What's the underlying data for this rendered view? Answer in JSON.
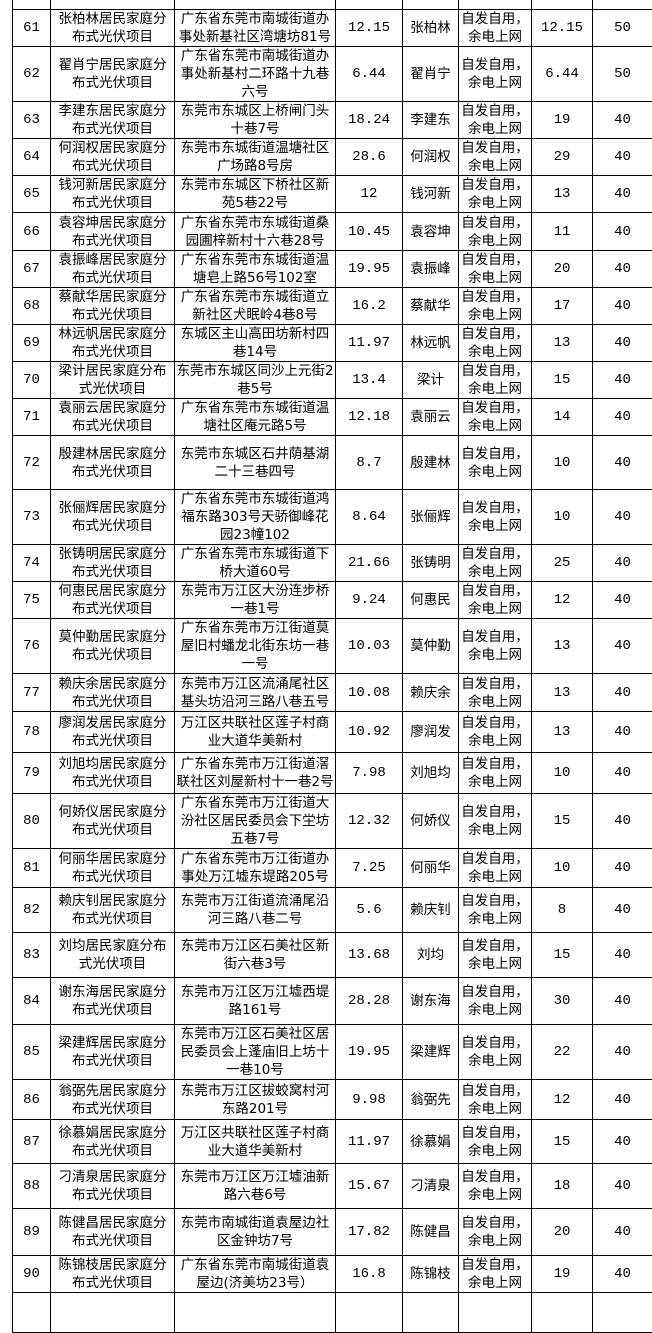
{
  "table": {
    "rows": [
      {
        "no": "61",
        "project": "张柏林居民家庭分布式光伏项目",
        "address": "广东省东莞市南城街道办事处新基社区湾塘坊81号",
        "capacity": "12.15",
        "owner": "张柏林",
        "mode": "自发自用，余电上网",
        "value1": "12.15",
        "value2": "50"
      },
      {
        "no": "62",
        "project": "翟肖宁居民家庭分布式光伏项目",
        "address": "广东省东莞市南城街道办事处新基村二环路十九巷六号",
        "capacity": "6.44",
        "owner": "翟肖宁",
        "mode": "自发自用，余电上网",
        "value1": "6.44",
        "value2": "50"
      },
      {
        "no": "63",
        "project": "李建东居民家庭分布式光伏项目",
        "address": "东莞市东城区上桥闸门头十巷7号",
        "capacity": "18.24",
        "owner": "李建东",
        "mode": "自发自用，余电上网",
        "value1": "19",
        "value2": "40"
      },
      {
        "no": "64",
        "project": "何润权居民家庭分布式光伏项目",
        "address": "东莞市东城街道温塘社区广场路8号房",
        "capacity": "28.6",
        "owner": "何润权",
        "mode": "自发自用，余电上网",
        "value1": "29",
        "value2": "40"
      },
      {
        "no": "65",
        "project": "钱河新居民家庭分布式光伏项目",
        "address": "东莞市东城区下桥社区新苑5巷22号",
        "capacity": "12",
        "owner": "钱河新",
        "mode": "自发自用，余电上网",
        "value1": "13",
        "value2": "40"
      },
      {
        "no": "66",
        "project": "袁容坤居民家庭分布式光伏项目",
        "address": "广东省东莞市东城街道桑园圃梓新村十六巷28号",
        "capacity": "10.45",
        "owner": "袁容坤",
        "mode": "自发自用，余电上网",
        "value1": "11",
        "value2": "40"
      },
      {
        "no": "67",
        "project": "袁振峰居民家庭分布式光伏项目",
        "address": "广东省东莞市东城街道温塘皂上路56号102室",
        "capacity": "19.95",
        "owner": "袁振峰",
        "mode": "自发自用，余电上网",
        "value1": "20",
        "value2": "40"
      },
      {
        "no": "68",
        "project": "蔡献华居民家庭分布式光伏项目",
        "address": "广东省东莞市东城街道立新社区犬眠岭4巷8号",
        "capacity": "16.2",
        "owner": "蔡献华",
        "mode": "自发自用，余电上网",
        "value1": "17",
        "value2": "40"
      },
      {
        "no": "69",
        "project": "林远帆居民家庭分布式光伏项目",
        "address": "东城区主山高田坊新村四巷14号",
        "capacity": "11.97",
        "owner": "林远帆",
        "mode": "自发自用，余电上网",
        "value1": "13",
        "value2": "40"
      },
      {
        "no": "70",
        "project": "梁计居民家庭分布式光伏项目",
        "address": "东莞市东城区同沙上元街2巷5号",
        "capacity": "13.4",
        "owner": "梁计",
        "mode": "自发自用，余电上网",
        "value1": "15",
        "value2": "40"
      },
      {
        "no": "71",
        "project": "袁丽云居民家庭分布式光伏项目",
        "address": "广东省东莞市东城街道温塘社区庵元路5号",
        "capacity": "12.18",
        "owner": "袁丽云",
        "mode": "自发自用，余电上网",
        "value1": "14",
        "value2": "40"
      },
      {
        "no": "72",
        "project": "殷建林居民家庭分布式光伏项目",
        "address": "东莞市东城区石井荫基湖二十三巷四号",
        "capacity": "8.7",
        "owner": "殷建林",
        "mode": "自发自用，余电上网",
        "value1": "10",
        "value2": "40"
      },
      {
        "no": "73",
        "project": "张俪辉居民家庭分布式光伏项目",
        "address": "广东省东莞市东城街道鸿福东路303号天骄御峰花园23幢102",
        "capacity": "8.64",
        "owner": "张俪辉",
        "mode": "自发自用，余电上网",
        "value1": "10",
        "value2": "40"
      },
      {
        "no": "74",
        "project": "张铸明居民家庭分布式光伏项目",
        "address": "广东省东莞市东城街道下桥大道60号",
        "capacity": "21.66",
        "owner": "张铸明",
        "mode": "自发自用，余电上网",
        "value1": "25",
        "value2": "40"
      },
      {
        "no": "75",
        "project": "何惠民居民家庭分布式光伏项目",
        "address": "东莞市万江区大汾连步桥一巷1号",
        "capacity": "9.24",
        "owner": "何惠民",
        "mode": "自发自用，余电上网",
        "value1": "12",
        "value2": "40"
      },
      {
        "no": "76",
        "project": "莫仲勤居民家庭分布式光伏项目",
        "address": "广东省东莞市万江街道莫屋旧村蟠龙北街东坊一巷一号",
        "capacity": "10.03",
        "owner": "莫仲勤",
        "mode": "自发自用，余电上网",
        "value1": "13",
        "value2": "40"
      },
      {
        "no": "77",
        "project": "赖庆余居民家庭分布式光伏项目",
        "address": "东莞市万江区流涌尾社区基头坊沿河三路八巷五号",
        "capacity": "10.08",
        "owner": "赖庆余",
        "mode": "自发自用，余电上网",
        "value1": "13",
        "value2": "40"
      },
      {
        "no": "78",
        "project": "廖润发居民家庭分布式光伏项目",
        "address": "万江区共联社区莲子村商业大道华美新村",
        "capacity": "10.92",
        "owner": "廖润发",
        "mode": "自发自用，余电上网",
        "value1": "13",
        "value2": "40"
      },
      {
        "no": "79",
        "project": "刘旭均居民家庭分布式光伏项目",
        "address": "广东省东莞市万江街道滘联社区刘屋新村十一巷2号",
        "capacity": "7.98",
        "owner": "刘旭均",
        "mode": "自发自用，余电上网",
        "value1": "10",
        "value2": "40"
      },
      {
        "no": "80",
        "project": "何娇仪居民家庭分布式光伏项目",
        "address": "广东省东莞市万江街道大汾社区居民委员会下坣坊五巷7号",
        "capacity": "12.32",
        "owner": "何娇仪",
        "mode": "自发自用，余电上网",
        "value1": "15",
        "value2": "40"
      },
      {
        "no": "81",
        "project": "何丽华居民家庭分布式光伏项目",
        "address": "广东省东莞市万江街道办事处万江墟东堤路205号",
        "capacity": "7.25",
        "owner": "何丽华",
        "mode": "自发自用，余电上网",
        "value1": "10",
        "value2": "40"
      },
      {
        "no": "82",
        "project": "赖庆钊居民家庭分布式光伏项目",
        "address": "东莞市万江街道流涌尾沿河三路八巷二号",
        "capacity": "5.6",
        "owner": "赖庆钊",
        "mode": "自发自用，余电上网",
        "value1": "8",
        "value2": "40"
      },
      {
        "no": "83",
        "project": "刘均居民家庭分布式光伏项目",
        "address": "东莞市万江区石美社区新街六巷3号",
        "capacity": "13.68",
        "owner": "刘均",
        "mode": "自发自用，余电上网",
        "value1": "15",
        "value2": "40"
      },
      {
        "no": "84",
        "project": "谢东海居民家庭分布式光伏项目",
        "address": "东莞市万江区万江墟西堤路161号",
        "capacity": "28.28",
        "owner": "谢东海",
        "mode": "自发自用，余电上网",
        "value1": "30",
        "value2": "40"
      },
      {
        "no": "85",
        "project": "梁建辉居民家庭分布式光伏项目",
        "address": "东莞市万江区石美社区居民委员会上蓬庙旧上坊十一巷10号",
        "capacity": "19.95",
        "owner": "梁建辉",
        "mode": "自发自用，余电上网",
        "value1": "22",
        "value2": "40"
      },
      {
        "no": "86",
        "project": "翁弼先居民家庭分布式光伏项目",
        "address": "东莞市万江区拔蛟窝村河东路201号",
        "capacity": "9.98",
        "owner": "翁弼先",
        "mode": "自发自用，余电上网",
        "value1": "12",
        "value2": "40"
      },
      {
        "no": "87",
        "project": "徐慕娟居民家庭分布式光伏项目",
        "address": "万江区共联社区莲子村商业大道华美新村",
        "capacity": "11.97",
        "owner": "徐慕娟",
        "mode": "自发自用，余电上网",
        "value1": "15",
        "value2": "40"
      },
      {
        "no": "88",
        "project": "刁清泉居民家庭分布式光伏项目",
        "address": "东莞市万江区万江墟油新路六巷6号",
        "capacity": "15.67",
        "owner": "刁清泉",
        "mode": "自发自用，余电上网",
        "value1": "18",
        "value2": "40"
      },
      {
        "no": "89",
        "project": "陈健昌居民家庭分布式光伏项目",
        "address": "东莞市南城街道袁屋边社区金钟坊7号",
        "capacity": "17.82",
        "owner": "陈健昌",
        "mode": "自发自用，余电上网",
        "value1": "20",
        "value2": "40"
      },
      {
        "no": "90",
        "project": "陈锦枝居民家庭分布式光伏项目",
        "address": "广东省东莞市南城街道袁屋边(济美坊23号）",
        "capacity": "16.8",
        "owner": "陈锦枝",
        "mode": "自发自用，余电上网",
        "value1": "19",
        "value2": "40"
      }
    ]
  }
}
